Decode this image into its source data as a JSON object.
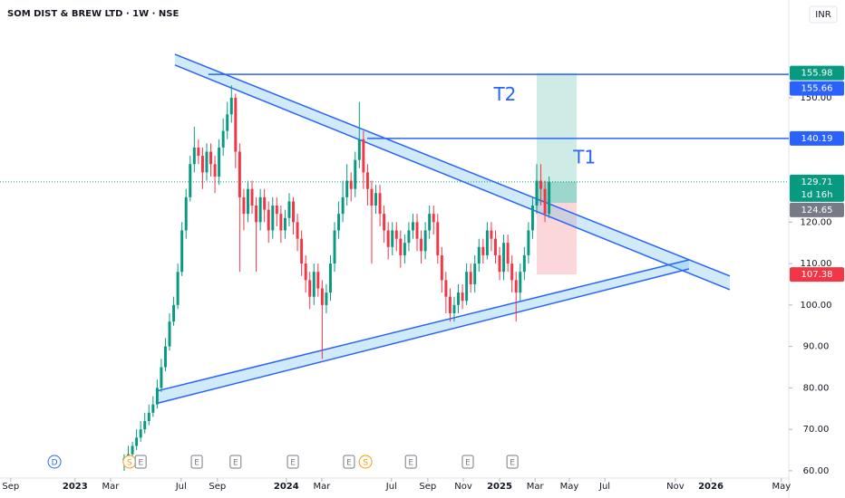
{
  "chart_data": {
    "type": "candlestick",
    "title": "SOM DIST & BREW LTD · 1W · NSE",
    "currency": "INR",
    "up_color": "#089981",
    "down_color": "#f23645",
    "x": [
      0,
      1,
      2,
      3,
      4,
      5,
      6,
      7,
      8,
      9,
      10,
      11,
      12,
      13,
      14,
      15,
      16,
      17,
      18,
      19,
      20,
      21,
      22,
      23,
      24,
      25,
      26,
      27,
      28,
      29,
      30,
      31,
      32,
      33,
      34,
      35,
      36,
      37,
      38,
      39,
      40,
      41,
      42,
      43,
      44,
      45,
      46,
      47,
      48,
      49,
      50,
      51,
      52,
      53,
      54,
      55,
      56,
      57,
      58,
      59,
      60,
      61,
      62,
      63,
      64,
      65,
      66,
      67,
      68,
      69,
      70,
      71,
      72,
      73,
      74,
      75,
      76,
      77,
      78,
      79,
      80,
      81,
      82,
      83,
      84,
      85,
      86,
      87,
      88,
      89,
      90,
      91,
      92,
      93,
      94,
      95,
      96,
      97,
      98,
      99,
      100,
      101,
      102,
      103
    ],
    "open": [
      62,
      63,
      64,
      66,
      68,
      70,
      72,
      74,
      76,
      80,
      85,
      90,
      96,
      100,
      108,
      118,
      126,
      134,
      138,
      136,
      132,
      137,
      134,
      131,
      138,
      142,
      146,
      150,
      137,
      126,
      122,
      128,
      124,
      120,
      126,
      123,
      118,
      124,
      122,
      118,
      121,
      125,
      120,
      116,
      110,
      106,
      102,
      108,
      104,
      100,
      103,
      110,
      118,
      122,
      126,
      130,
      128,
      135,
      140,
      132,
      128,
      124,
      127,
      122,
      118,
      114,
      118,
      116,
      112,
      115,
      118,
      120,
      116,
      113,
      118,
      122,
      120,
      112,
      106,
      102,
      98,
      100,
      103,
      101,
      108,
      105,
      110,
      114,
      112,
      118,
      116,
      112,
      108,
      115,
      110,
      106,
      103,
      108,
      112,
      118,
      124,
      130,
      128,
      122
    ],
    "high": [
      64,
      66,
      67,
      70,
      72,
      74,
      76,
      78,
      82,
      87,
      92,
      98,
      102,
      110,
      120,
      128,
      136,
      143,
      140,
      138,
      139,
      139,
      136,
      140,
      145,
      149,
      153,
      151,
      139,
      128,
      130,
      130,
      126,
      128,
      128,
      125,
      126,
      126,
      124,
      123,
      127,
      126,
      122,
      118,
      112,
      108,
      110,
      110,
      106,
      105,
      112,
      120,
      125,
      130,
      134,
      132,
      137,
      149,
      142,
      134,
      130,
      129,
      129,
      124,
      120,
      120,
      120,
      118,
      117,
      120,
      122,
      122,
      118,
      120,
      124,
      124,
      122,
      114,
      108,
      104,
      102,
      105,
      105,
      110,
      110,
      112,
      116,
      116,
      120,
      120,
      118,
      114,
      117,
      117,
      112,
      108,
      110,
      114,
      120,
      126,
      134,
      134,
      130,
      131
    ],
    "low": [
      60,
      62,
      63,
      65,
      67,
      69,
      71,
      73,
      75,
      79,
      84,
      89,
      95,
      99,
      107,
      116,
      125,
      132,
      134,
      128,
      130,
      131,
      127,
      129,
      136,
      140,
      144,
      133,
      108,
      118,
      120,
      122,
      108,
      118,
      120,
      115,
      116,
      119,
      115,
      116,
      119,
      117,
      113,
      107,
      103,
      99,
      100,
      102,
      87,
      98,
      101,
      108,
      116,
      120,
      124,
      125,
      126,
      133,
      128,
      124,
      110,
      122,
      119,
      115,
      111,
      112,
      113,
      109,
      110,
      113,
      116,
      113,
      110,
      111,
      116,
      117,
      110,
      103,
      98,
      96,
      96,
      98,
      99,
      100,
      103,
      103,
      108,
      110,
      111,
      113,
      110,
      106,
      106,
      108,
      103,
      96,
      101,
      106,
      110,
      116,
      122,
      124,
      120,
      121
    ],
    "close": [
      63,
      64,
      66,
      68,
      70,
      72,
      74,
      76,
      80,
      85,
      90,
      96,
      100,
      108,
      118,
      126,
      134,
      138,
      136,
      132,
      137,
      134,
      131,
      138,
      142,
      146,
      150,
      137,
      126,
      122,
      128,
      124,
      120,
      126,
      123,
      118,
      124,
      122,
      118,
      121,
      125,
      120,
      116,
      110,
      106,
      102,
      108,
      104,
      100,
      103,
      110,
      118,
      122,
      126,
      130,
      128,
      135,
      140,
      132,
      128,
      124,
      127,
      122,
      118,
      114,
      118,
      116,
      112,
      115,
      118,
      120,
      116,
      113,
      118,
      122,
      120,
      112,
      106,
      102,
      98,
      100,
      103,
      101,
      108,
      105,
      110,
      114,
      112,
      118,
      116,
      112,
      108,
      115,
      110,
      106,
      103,
      108,
      112,
      118,
      124,
      130,
      128,
      122,
      129.71
    ],
    "xlim": [
      -30.1,
      161.1
    ],
    "ylim": [
      57.8,
      173.6
    ],
    "xticks": [
      {
        "value": -27.5,
        "label": "Sep"
      },
      {
        "value": -11.9,
        "label": "2023"
      },
      {
        "value": -3.3,
        "label": "Mar"
      },
      {
        "value": 13.8,
        "label": "Jul"
      },
      {
        "value": 22.6,
        "label": "Sep"
      },
      {
        "value": 39.3,
        "label": "2024"
      },
      {
        "value": 47.9,
        "label": "Mar"
      },
      {
        "value": 64.8,
        "label": "Jul"
      },
      {
        "value": 73.6,
        "label": "Sep"
      },
      {
        "value": 82.2,
        "label": "Nov"
      },
      {
        "value": 91.0,
        "label": "2025"
      },
      {
        "value": 99.6,
        "label": "Mar"
      },
      {
        "value": 107.9,
        "label": "May"
      },
      {
        "value": 116.5,
        "label": "Jul"
      },
      {
        "value": 133.6,
        "label": "Nov"
      },
      {
        "value": 142.2,
        "label": "2026"
      },
      {
        "value": 159.3,
        "label": "May"
      }
    ],
    "yticks": [
      {
        "value": 60,
        "label": "60.00"
      },
      {
        "value": 70,
        "label": "70.00"
      },
      {
        "value": 80,
        "label": "80.00"
      },
      {
        "value": 90,
        "label": "90.00"
      },
      {
        "value": 100,
        "label": "100.00"
      },
      {
        "value": 110,
        "label": "110.00"
      },
      {
        "value": 120,
        "label": "120.00"
      },
      {
        "value": 150,
        "label": "150.00"
      }
    ],
    "grid": false,
    "hlines": [
      {
        "value": 155.66,
        "x_start": 20.4,
        "color": "#2962ff"
      },
      {
        "value": 140.19,
        "x_start": 58.9,
        "color": "#2962ff"
      }
    ],
    "channels": [
      {
        "x": [
          12.3,
          146.8
        ],
        "upper": [
          160.5,
          107.0
        ],
        "lower": [
          157.9,
          103.7
        ]
      },
      {
        "x": [
          7.7,
          136.9
        ],
        "upper": [
          79.2,
          110.9
        ],
        "lower": [
          76.2,
          108.7
        ]
      }
    ],
    "position": {
      "entry": 124.65,
      "target": 155.98,
      "stop": 107.38,
      "current": 129.71,
      "x_start": 100.0,
      "x_end": 109.7
    },
    "annotations": [
      {
        "text": "T2",
        "x": 92.3,
        "y": 150.6
      },
      {
        "text": "T1",
        "x": 111.6,
        "y": 135.4
      }
    ],
    "events": [
      {
        "label": "D",
        "x": -16.9
      },
      {
        "label": "S",
        "x": 1.3
      },
      {
        "label": "E",
        "x": 4.0
      },
      {
        "label": "E",
        "x": 17.6
      },
      {
        "label": "E",
        "x": 27.0
      },
      {
        "label": "E",
        "x": 40.9
      },
      {
        "label": "E",
        "x": 54.5
      },
      {
        "label": "S",
        "x": 58.5
      },
      {
        "label": "E",
        "x": 69.5
      },
      {
        "label": "E",
        "x": 83.3
      },
      {
        "label": "E",
        "x": 94.1
      }
    ],
    "price_labels": [
      {
        "value": 155.98,
        "color": "#089981"
      },
      {
        "value": 155.66,
        "color": "#2962ff"
      },
      {
        "value": 140.19,
        "color": "#2962ff"
      },
      {
        "value": 129.71,
        "color": "#089981"
      },
      {
        "value": 124.65,
        "color": "#787b86"
      },
      {
        "value": 107.38,
        "color": "#f23645"
      }
    ],
    "countdown": "1d 16h"
  }
}
